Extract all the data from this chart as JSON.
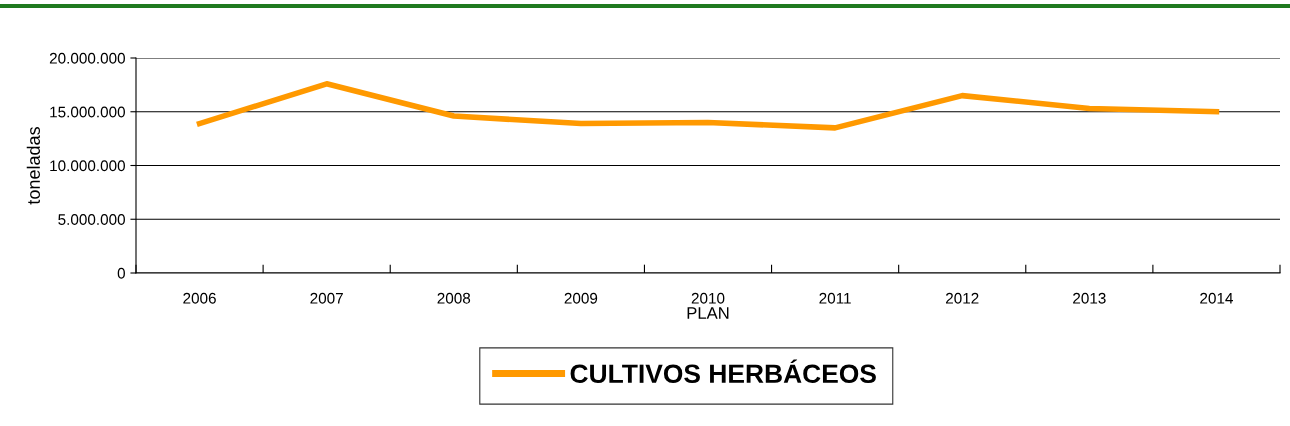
{
  "chart_data": {
    "type": "line",
    "xlabel": "PLAN",
    "ylabel": "toneladas",
    "categories": [
      "2006",
      "2007",
      "2008",
      "2009",
      "2010",
      "2011",
      "2012",
      "2013",
      "2014"
    ],
    "series": [
      {
        "name": "CULTIVOS HERBÁCEOS",
        "color": "#ff9900",
        "values": [
          13900000,
          17600000,
          14600000,
          13900000,
          14000000,
          13500000,
          16500000,
          15300000,
          15000000
        ]
      }
    ],
    "ylim": [
      0,
      20000000
    ],
    "yticks": [
      {
        "value": 0,
        "label": "0"
      },
      {
        "value": 5000000,
        "label": "5.000.000"
      },
      {
        "value": 10000000,
        "label": "10.000.000"
      },
      {
        "value": 15000000,
        "label": "15.000.000"
      },
      {
        "value": 20000000,
        "label": "20.000.000"
      }
    ],
    "grid": "y",
    "legend": "bottom",
    "marker": "none",
    "line_style": "solid"
  }
}
